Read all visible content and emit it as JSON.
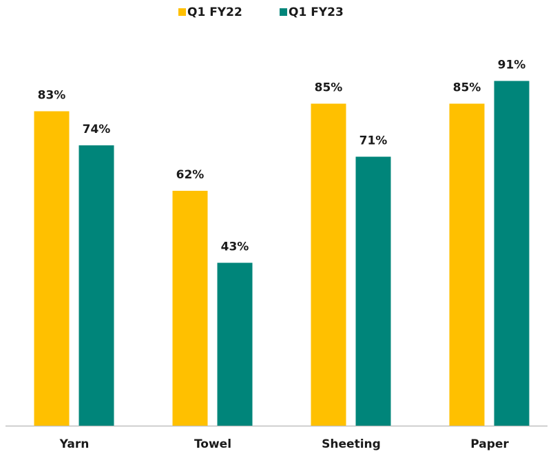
{
  "chart_data": {
    "type": "bar",
    "categories": [
      "Yarn",
      "Towel",
      "Sheeting",
      "Paper"
    ],
    "series": [
      {
        "name": "Q1 FY22",
        "color": "#ffc000",
        "values": [
          83,
          62,
          85,
          85
        ],
        "value_labels": [
          "83%",
          "62%",
          "85%",
          "85%"
        ]
      },
      {
        "name": "Q1 FY23",
        "color": "#00857a",
        "values": [
          74,
          43,
          71,
          91
        ],
        "value_labels": [
          "74%",
          "43%",
          "71%",
          "91%"
        ]
      }
    ],
    "ylim": [
      0,
      100
    ],
    "legend": "top"
  }
}
